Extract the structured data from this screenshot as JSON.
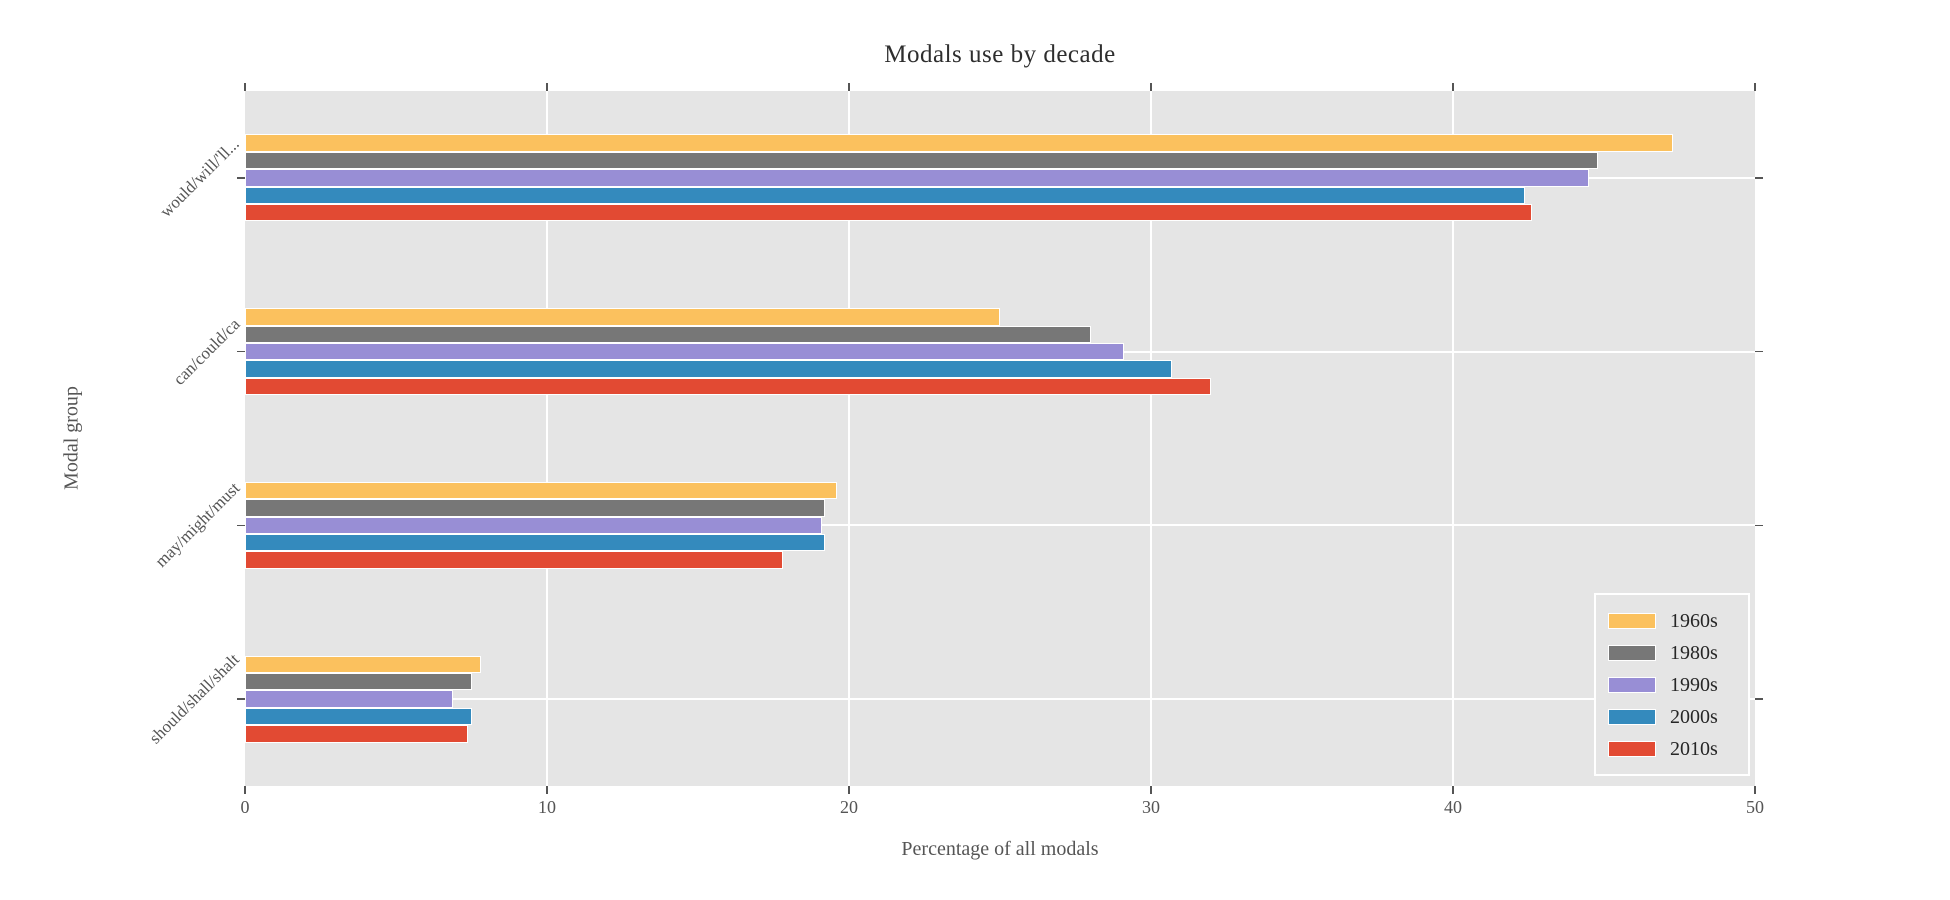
{
  "chart_data": {
    "type": "bar",
    "orientation": "horizontal",
    "title": "Modals use by decade",
    "xlabel": "Percentage of all modals",
    "ylabel": "Modal group",
    "categories": [
      "would/will/'ll...",
      "can/could/ca",
      "may/might/must",
      "should/shall/shalt"
    ],
    "series": [
      {
        "name": "1960s",
        "color": "#FBC15E",
        "values": [
          47.3,
          25.0,
          19.6,
          7.8
        ]
      },
      {
        "name": "1980s",
        "color": "#777777",
        "values": [
          44.8,
          28.0,
          19.2,
          7.5
        ]
      },
      {
        "name": "1990s",
        "color": "#988ED5",
        "values": [
          44.5,
          29.1,
          19.1,
          6.9
        ]
      },
      {
        "name": "2000s",
        "color": "#348ABD",
        "values": [
          42.4,
          30.7,
          19.2,
          7.5
        ]
      },
      {
        "name": "2010s",
        "color": "#E24A33",
        "values": [
          42.6,
          32.0,
          17.8,
          7.4
        ]
      }
    ],
    "xlim": [
      0,
      50
    ],
    "xticks": [
      0,
      10,
      20,
      30,
      40,
      50
    ],
    "grid": true,
    "legend_position": "lower right",
    "colors": {
      "plot_background": "#E5E5E5",
      "grid": "#FFFFFF",
      "axis_text": "#555555",
      "title_text": "#2E2E2E",
      "legend_text": "#262626",
      "bar_edge": "#FFFFFF"
    }
  }
}
